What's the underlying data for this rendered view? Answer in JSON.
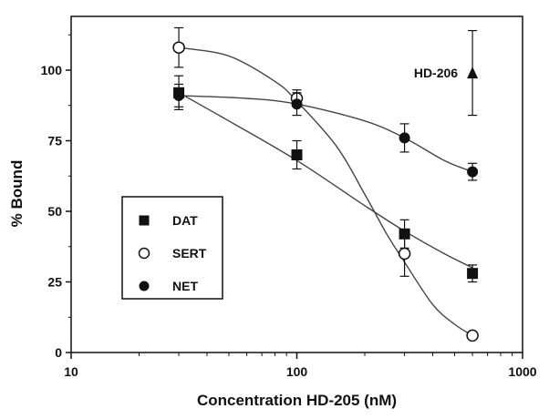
{
  "chart_data": {
    "type": "scatter",
    "title": "",
    "xlabel": "Concentration HD-205 (nM)",
    "ylabel": "% Bound",
    "xscale": "log",
    "xlim": [
      10,
      1000
    ],
    "ylim": [
      0,
      120
    ],
    "xticks": [
      10,
      100,
      1000
    ],
    "xtick_labels": [
      "10",
      "100",
      "1000"
    ],
    "yticks": [
      0,
      25,
      50,
      75,
      100
    ],
    "ytick_labels": [
      "0",
      "25",
      "50",
      "75",
      "100"
    ],
    "grid": false,
    "legend_position": "lower-left",
    "series": [
      {
        "name": "DAT",
        "marker": "filled-square",
        "x": [
          30,
          100,
          300,
          600
        ],
        "y": [
          92,
          70,
          42,
          28
        ],
        "err": [
          6,
          5,
          5,
          3
        ],
        "curve": [
          [
            30,
            92
          ],
          [
            50,
            82
          ],
          [
            100,
            68
          ],
          [
            200,
            52
          ],
          [
            300,
            43
          ],
          [
            450,
            35
          ],
          [
            600,
            30
          ]
        ]
      },
      {
        "name": "SERT",
        "marker": "open-circle",
        "x": [
          30,
          100,
          300,
          600
        ],
        "y": [
          108,
          90,
          35,
          6
        ],
        "err": [
          7,
          3,
          8,
          0
        ],
        "curve": [
          [
            30,
            108
          ],
          [
            50,
            105
          ],
          [
            80,
            96
          ],
          [
            100,
            89
          ],
          [
            150,
            73
          ],
          [
            200,
            56
          ],
          [
            250,
            42
          ],
          [
            300,
            32
          ],
          [
            400,
            17
          ],
          [
            500,
            10
          ],
          [
            600,
            6
          ]
        ]
      },
      {
        "name": "NET",
        "marker": "filled-circle",
        "x": [
          30,
          100,
          300,
          600
        ],
        "y": [
          91,
          88,
          76,
          64
        ],
        "err": [
          4,
          4,
          5,
          3
        ],
        "curve": [
          [
            30,
            91
          ],
          [
            60,
            90
          ],
          [
            100,
            88
          ],
          [
            200,
            82
          ],
          [
            300,
            76
          ],
          [
            450,
            68
          ],
          [
            600,
            64
          ]
        ]
      },
      {
        "name": "HD-206",
        "marker": "filled-triangle",
        "x": [
          600
        ],
        "y": [
          99
        ],
        "err": [
          15
        ]
      }
    ],
    "annotations": [
      {
        "text": "HD-206"
      }
    ],
    "legend": [
      "DAT",
      "SERT",
      "NET"
    ]
  }
}
